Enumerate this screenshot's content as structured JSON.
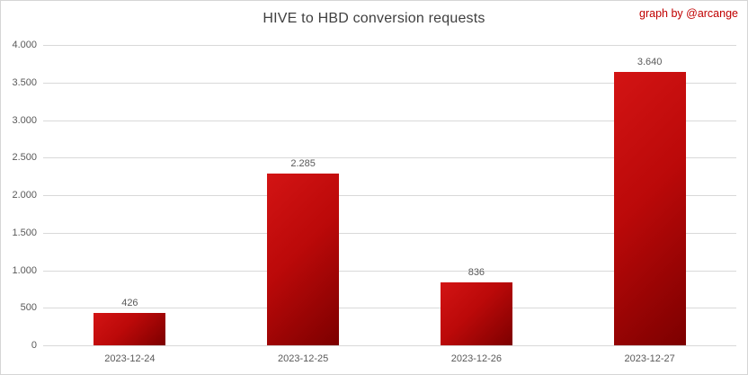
{
  "header": {
    "credit": "graph by @arcange",
    "credit_color": "#c00000"
  },
  "chart_data": {
    "type": "bar",
    "title": "HIVE to HBD conversion requests",
    "categories": [
      "2023-12-24",
      "2023-12-25",
      "2023-12-26",
      "2023-12-27"
    ],
    "values": [
      426,
      2285,
      836,
      3640
    ],
    "value_labels": [
      "426",
      "2.285",
      "836",
      "3.640"
    ],
    "xlabel": "",
    "ylabel": "",
    "ylim": [
      0,
      4000
    ],
    "ytick_step": 500,
    "ytick_labels": [
      "0",
      "500",
      "1.000",
      "1.500",
      "2.000",
      "2.500",
      "3.000",
      "3.500",
      "4.000"
    ],
    "grid": true,
    "legend": null,
    "bar_color_start": "#d31414",
    "bar_color_end": "#7c0000",
    "gridline_color": "#d9d9d9",
    "text_color": "#595959",
    "title_color": "#3f3f3f"
  }
}
